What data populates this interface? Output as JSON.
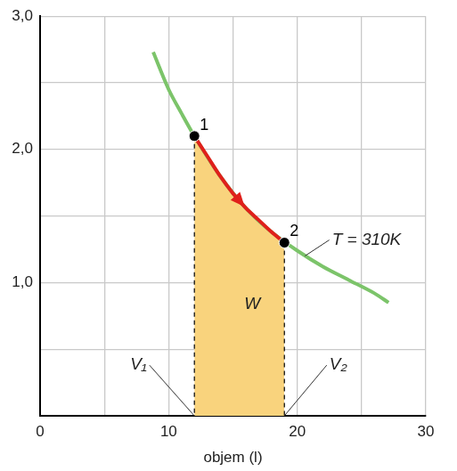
{
  "chart_data": {
    "type": "line",
    "x_label": "objem (l)",
    "xlim": [
      0,
      30
    ],
    "ylim": [
      0,
      3
    ],
    "xticks": [
      0,
      10,
      20,
      30
    ],
    "yticks": [
      {
        "value": 1,
        "label": "1,0"
      },
      {
        "value": 2,
        "label": "2,0"
      },
      {
        "value": 3,
        "label": "3,0"
      }
    ],
    "grid": true,
    "series": [
      {
        "type": "area",
        "color": "#f9d37d",
        "x": [
          12,
          13,
          14,
          15,
          16,
          17,
          18,
          19
        ],
        "values": [
          2.1,
          1.95,
          1.8,
          1.67,
          1.56,
          1.47,
          1.38,
          1.3
        ]
      },
      {
        "type": "line",
        "color": "#7cc46a",
        "x": [
          8.8,
          10,
          11,
          12,
          14,
          16,
          18,
          20,
          22,
          24,
          26,
          27.1
        ],
        "values": [
          2.73,
          2.45,
          2.27,
          2.1,
          1.8,
          1.56,
          1.38,
          1.24,
          1.12,
          1.02,
          0.92,
          0.85
        ]
      },
      {
        "type": "line",
        "color": "#e0201b",
        "marker": "arrow",
        "x": [
          12,
          13,
          14,
          15,
          16,
          17,
          18,
          19
        ],
        "values": [
          2.1,
          1.95,
          1.8,
          1.67,
          1.56,
          1.47,
          1.38,
          1.3
        ]
      },
      {
        "type": "scatter",
        "color": "#000000",
        "marker": "circle",
        "x": [
          12,
          19
        ],
        "values": [
          2.1,
          1.3
        ],
        "point_labels": [
          "1",
          "2"
        ]
      }
    ],
    "annotations": [
      {
        "text": "W",
        "x": 16.5,
        "y": 0.84
      },
      {
        "text": "V₁",
        "x": 8.3,
        "y": 0.38,
        "points_to": {
          "x": 12,
          "y": 0
        }
      },
      {
        "text": "V₂",
        "x": 22.5,
        "y": 0.38,
        "points_to": {
          "x": 19,
          "y": 0
        }
      },
      {
        "text": "T = 310K",
        "x": 22.7,
        "y": 1.32,
        "points_to": {
          "x": 20.6,
          "y": 1.2
        }
      }
    ]
  }
}
